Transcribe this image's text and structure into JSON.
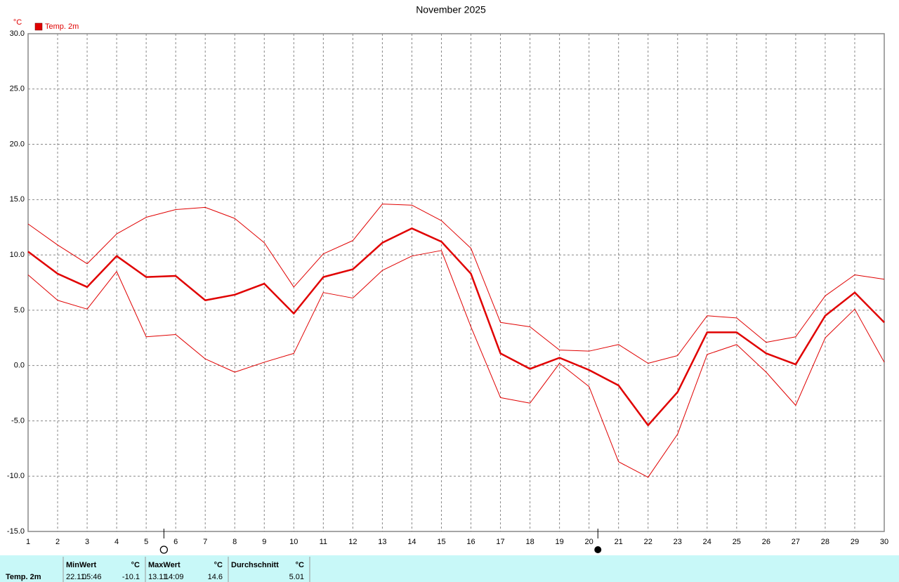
{
  "chart_data": {
    "type": "line",
    "title": "November 2025",
    "y_label": "°C",
    "x": [
      1,
      2,
      3,
      4,
      5,
      6,
      7,
      8,
      9,
      10,
      11,
      12,
      13,
      14,
      15,
      16,
      17,
      18,
      19,
      20,
      21,
      22,
      23,
      24,
      25,
      26,
      27,
      28,
      29,
      30
    ],
    "xlim": [
      1,
      30
    ],
    "xticks": [
      1,
      2,
      3,
      4,
      5,
      6,
      7,
      8,
      9,
      10,
      11,
      12,
      13,
      14,
      15,
      16,
      17,
      18,
      19,
      20,
      21,
      22,
      23,
      24,
      25,
      26,
      27,
      28,
      29,
      30
    ],
    "ylim": [
      -15,
      30
    ],
    "yticks": [
      {
        "value": -15,
        "label": "-15.0"
      },
      {
        "value": -10,
        "label": "-10.0"
      },
      {
        "value": -5,
        "label": "-5.0"
      },
      {
        "value": 0,
        "label": "0.0"
      },
      {
        "value": 5,
        "label": "5.0"
      },
      {
        "value": 10,
        "label": "10.0"
      },
      {
        "value": 15,
        "label": "15.0"
      },
      {
        "value": 20,
        "label": "20.0"
      },
      {
        "value": 25,
        "label": "25.0"
      },
      {
        "value": 30,
        "label": "30.0"
      }
    ],
    "grid": true,
    "full_moon": 5.6,
    "new_moon": 20.3,
    "series": [
      {
        "color": "#e00000",
        "line_width": 1,
        "values": [
          12.8,
          10.9,
          9.2,
          11.9,
          13.4,
          14.1,
          14.3,
          13.3,
          11.1,
          7.1,
          10.1,
          11.3,
          14.6,
          14.5,
          13.1,
          10.6,
          3.9,
          3.5,
          1.4,
          1.3,
          1.9,
          0.2,
          0.9,
          4.5,
          4.3,
          2.1,
          2.6,
          6.3,
          8.2,
          7.8
        ]
      },
      {
        "name": "Temp. 2m",
        "color": "#e00000",
        "line_width": 2.5,
        "values": [
          10.3,
          8.3,
          7.1,
          9.9,
          8.0,
          8.1,
          5.9,
          6.4,
          7.4,
          4.7,
          8.0,
          8.7,
          11.1,
          12.4,
          11.2,
          8.3,
          1.1,
          -0.3,
          0.7,
          -0.4,
          -1.8,
          -5.4,
          -2.4,
          3.0,
          3.0,
          1.1,
          0.1,
          4.5,
          6.6,
          3.9
        ]
      },
      {
        "color": "#e00000",
        "line_width": 1,
        "values": [
          8.2,
          5.9,
          5.1,
          8.5,
          2.6,
          2.8,
          0.6,
          -0.6,
          0.3,
          1.1,
          6.6,
          6.1,
          8.6,
          9.9,
          10.4,
          3.5,
          -2.9,
          -3.4,
          0.2,
          -1.9,
          -8.7,
          -10.1,
          -6.2,
          1.0,
          1.9,
          -0.6,
          -3.6,
          2.5,
          5.1,
          0.3
        ]
      }
    ]
  },
  "stats": {
    "label": "Temp. 2m",
    "columns": [
      {
        "title": "MinWert",
        "unit": "°C",
        "date": "22.11.",
        "time": "05:46",
        "value": -10.1
      },
      {
        "title": "MaxWert",
        "unit": "°C",
        "date": "13.11.",
        "time": "14:09",
        "value": 14.6
      },
      {
        "title": "Durchschnitt",
        "unit": "°C",
        "value": 5.01
      }
    ]
  }
}
